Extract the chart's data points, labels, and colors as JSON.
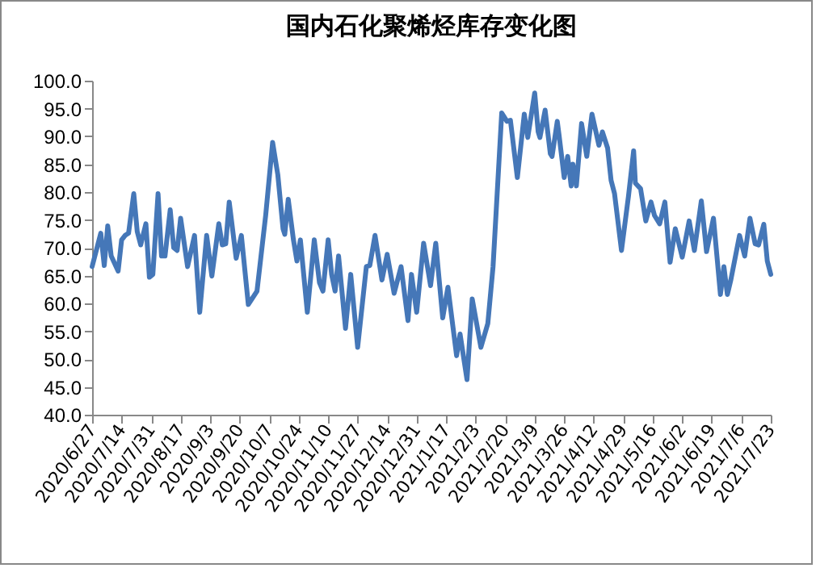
{
  "chart_data": {
    "type": "line",
    "title": "国内石化聚烯烃库存变化图",
    "x": [
      "2020-06-27",
      "2020-07-02",
      "2020-07-04",
      "2020-07-06",
      "2020-07-08",
      "2020-07-12",
      "2020-07-14",
      "2020-07-16",
      "2020-07-18",
      "2020-07-21",
      "2020-07-23",
      "2020-07-25",
      "2020-07-28",
      "2020-07-30",
      "2020-08-01",
      "2020-08-04",
      "2020-08-06",
      "2020-08-08",
      "2020-08-11",
      "2020-08-13",
      "2020-08-15",
      "2020-08-17",
      "2020-08-21",
      "2020-08-25",
      "2020-08-28",
      "2020-09-01",
      "2020-09-04",
      "2020-09-08",
      "2020-09-10",
      "2020-09-12",
      "2020-09-14",
      "2020-09-18",
      "2020-09-21",
      "2020-09-25",
      "2020-09-30",
      "2020-10-05",
      "2020-10-09",
      "2020-10-12",
      "2020-10-15",
      "2020-10-16",
      "2020-10-18",
      "2020-10-21",
      "2020-10-23",
      "2020-10-25",
      "2020-10-29",
      "2020-11-02",
      "2020-11-05",
      "2020-11-07",
      "2020-11-10",
      "2020-11-12",
      "2020-11-14",
      "2020-11-16",
      "2020-11-20",
      "2020-11-23",
      "2020-11-27",
      "2020-12-02",
      "2020-12-04",
      "2020-12-07",
      "2020-12-11",
      "2020-12-14",
      "2020-12-18",
      "2020-12-22",
      "2020-12-26",
      "2020-12-28",
      "2020-12-31",
      "2021-01-04",
      "2021-01-08",
      "2021-01-11",
      "2021-01-15",
      "2021-01-18",
      "2021-01-23",
      "2021-01-25",
      "2021-01-29",
      "2021-02-01",
      "2021-02-06",
      "2021-02-10",
      "2021-02-13",
      "2021-02-18",
      "2021-02-21",
      "2021-02-23",
      "2021-02-27",
      "2021-03-03",
      "2021-03-05",
      "2021-03-09",
      "2021-03-11",
      "2021-03-12",
      "2021-03-15",
      "2021-03-18",
      "2021-03-19",
      "2021-03-22",
      "2021-03-23",
      "2021-03-26",
      "2021-03-28",
      "2021-03-30",
      "2021-03-31",
      "2021-04-02",
      "2021-04-05",
      "2021-04-08",
      "2021-04-11",
      "2021-04-15",
      "2021-04-17",
      "2021-04-20",
      "2021-04-22",
      "2021-04-24",
      "2021-04-28",
      "2021-05-02",
      "2021-05-05",
      "2021-05-06",
      "2021-05-09",
      "2021-05-12",
      "2021-05-15",
      "2021-05-17",
      "2021-05-20",
      "2021-05-23",
      "2021-05-26",
      "2021-05-29",
      "2021-06-02",
      "2021-06-06",
      "2021-06-09",
      "2021-06-13",
      "2021-06-16",
      "2021-06-20",
      "2021-06-24",
      "2021-06-26",
      "2021-06-28",
      "2021-06-30",
      "2021-07-05",
      "2021-07-08",
      "2021-07-11",
      "2021-07-14",
      "2021-07-16",
      "2021-07-19",
      "2021-07-21",
      "2021-07-23"
    ],
    "series": [
      {
        "color": "#4577b8",
        "values": [
          66.6,
          72.6,
          66.8,
          73.9,
          68.5,
          65.8,
          71.4,
          72.2,
          72.6,
          79.7,
          72.9,
          70.5,
          74.3,
          64.7,
          65.2,
          79.7,
          68.5,
          68.5,
          76.8,
          70.0,
          69.5,
          75.3,
          66.6,
          72.2,
          58.4,
          72.2,
          64.9,
          74.3,
          70.5,
          70.7,
          78.2,
          68.1,
          72.2,
          59.8,
          62.2,
          75.8,
          88.9,
          83.1,
          73.4,
          72.4,
          78.7,
          71.4,
          67.6,
          71.4,
          58.4,
          71.4,
          63.7,
          62.2,
          71.4,
          65.2,
          62.2,
          68.5,
          55.5,
          65.2,
          52.1,
          66.6,
          66.8,
          72.2,
          64.2,
          68.8,
          61.8,
          66.6,
          56.9,
          65.2,
          58.4,
          70.8,
          63.2,
          70.8,
          57.4,
          62.9,
          50.6,
          54.5,
          46.3,
          60.8,
          52.1,
          56.4,
          66.6,
          94.2,
          92.7,
          92.9,
          82.6,
          94.0,
          89.8,
          97.8,
          90.8,
          89.8,
          94.7,
          86.9,
          86.4,
          92.7,
          90.3,
          82.6,
          86.4,
          81.1,
          85.0,
          81.1,
          92.3,
          86.4,
          94.0,
          88.4,
          90.8,
          87.9,
          82.1,
          79.7,
          69.5,
          79.2,
          87.4,
          81.6,
          80.6,
          74.8,
          78.2,
          75.8,
          74.3,
          78.2,
          67.4,
          73.4,
          68.3,
          74.8,
          69.5,
          78.4,
          69.3,
          75.3,
          61.6,
          66.6,
          61.6,
          64.2,
          72.2,
          68.5,
          75.3,
          70.7,
          70.5,
          74.2,
          67.6,
          65.2
        ]
      }
    ],
    "xlim": [
      "2020-06-27",
      "2021-07-23"
    ],
    "xticks": [
      {
        "value": "2020-06-27",
        "label": "2020/6/27"
      },
      {
        "value": "2020-07-14",
        "label": "2020/7/14"
      },
      {
        "value": "2020-07-31",
        "label": "2020/7/31"
      },
      {
        "value": "2020-08-17",
        "label": "2020/8/17"
      },
      {
        "value": "2020-09-03",
        "label": "2020/9/3"
      },
      {
        "value": "2020-09-20",
        "label": "2020/9/20"
      },
      {
        "value": "2020-10-07",
        "label": "2020/10/7"
      },
      {
        "value": "2020-10-24",
        "label": "2020/10/24"
      },
      {
        "value": "2020-11-10",
        "label": "2020/11/10"
      },
      {
        "value": "2020-11-27",
        "label": "2020/11/27"
      },
      {
        "value": "2020-12-14",
        "label": "2020/12/14"
      },
      {
        "value": "2020-12-31",
        "label": "2020/12/31"
      },
      {
        "value": "2021-01-17",
        "label": "2021/1/17"
      },
      {
        "value": "2021-02-03",
        "label": "2021/2/3"
      },
      {
        "value": "2021-02-20",
        "label": "2021/2/20"
      },
      {
        "value": "2021-03-09",
        "label": "2021/3/9"
      },
      {
        "value": "2021-03-26",
        "label": "2021/3/26"
      },
      {
        "value": "2021-04-12",
        "label": "2021/4/12"
      },
      {
        "value": "2021-04-29",
        "label": "2021/4/29"
      },
      {
        "value": "2021-05-16",
        "label": "2021/5/16"
      },
      {
        "value": "2021-06-02",
        "label": "2021/6/2"
      },
      {
        "value": "2021-06-19",
        "label": "2021/6/19"
      },
      {
        "value": "2021-07-06",
        "label": "2021/7/6"
      },
      {
        "value": "2021-07-23",
        "label": "2021/7/23"
      }
    ],
    "ylim": [
      40,
      100
    ],
    "yticks": [
      {
        "value": 40,
        "label": "40.0"
      },
      {
        "value": 45,
        "label": "45.0"
      },
      {
        "value": 50,
        "label": "50.0"
      },
      {
        "value": 55,
        "label": "55.0"
      },
      {
        "value": 60,
        "label": "60.0"
      },
      {
        "value": 65,
        "label": "65.0"
      },
      {
        "value": 70,
        "label": "70.0"
      },
      {
        "value": 75,
        "label": "75.0"
      },
      {
        "value": 80,
        "label": "80.0"
      },
      {
        "value": 85,
        "label": "85.0"
      },
      {
        "value": 90,
        "label": "90.0"
      },
      {
        "value": 95,
        "label": "95.0"
      },
      {
        "value": 100,
        "label": "100.0"
      }
    ],
    "grid": false,
    "marker": "none",
    "line_style": "solid"
  }
}
